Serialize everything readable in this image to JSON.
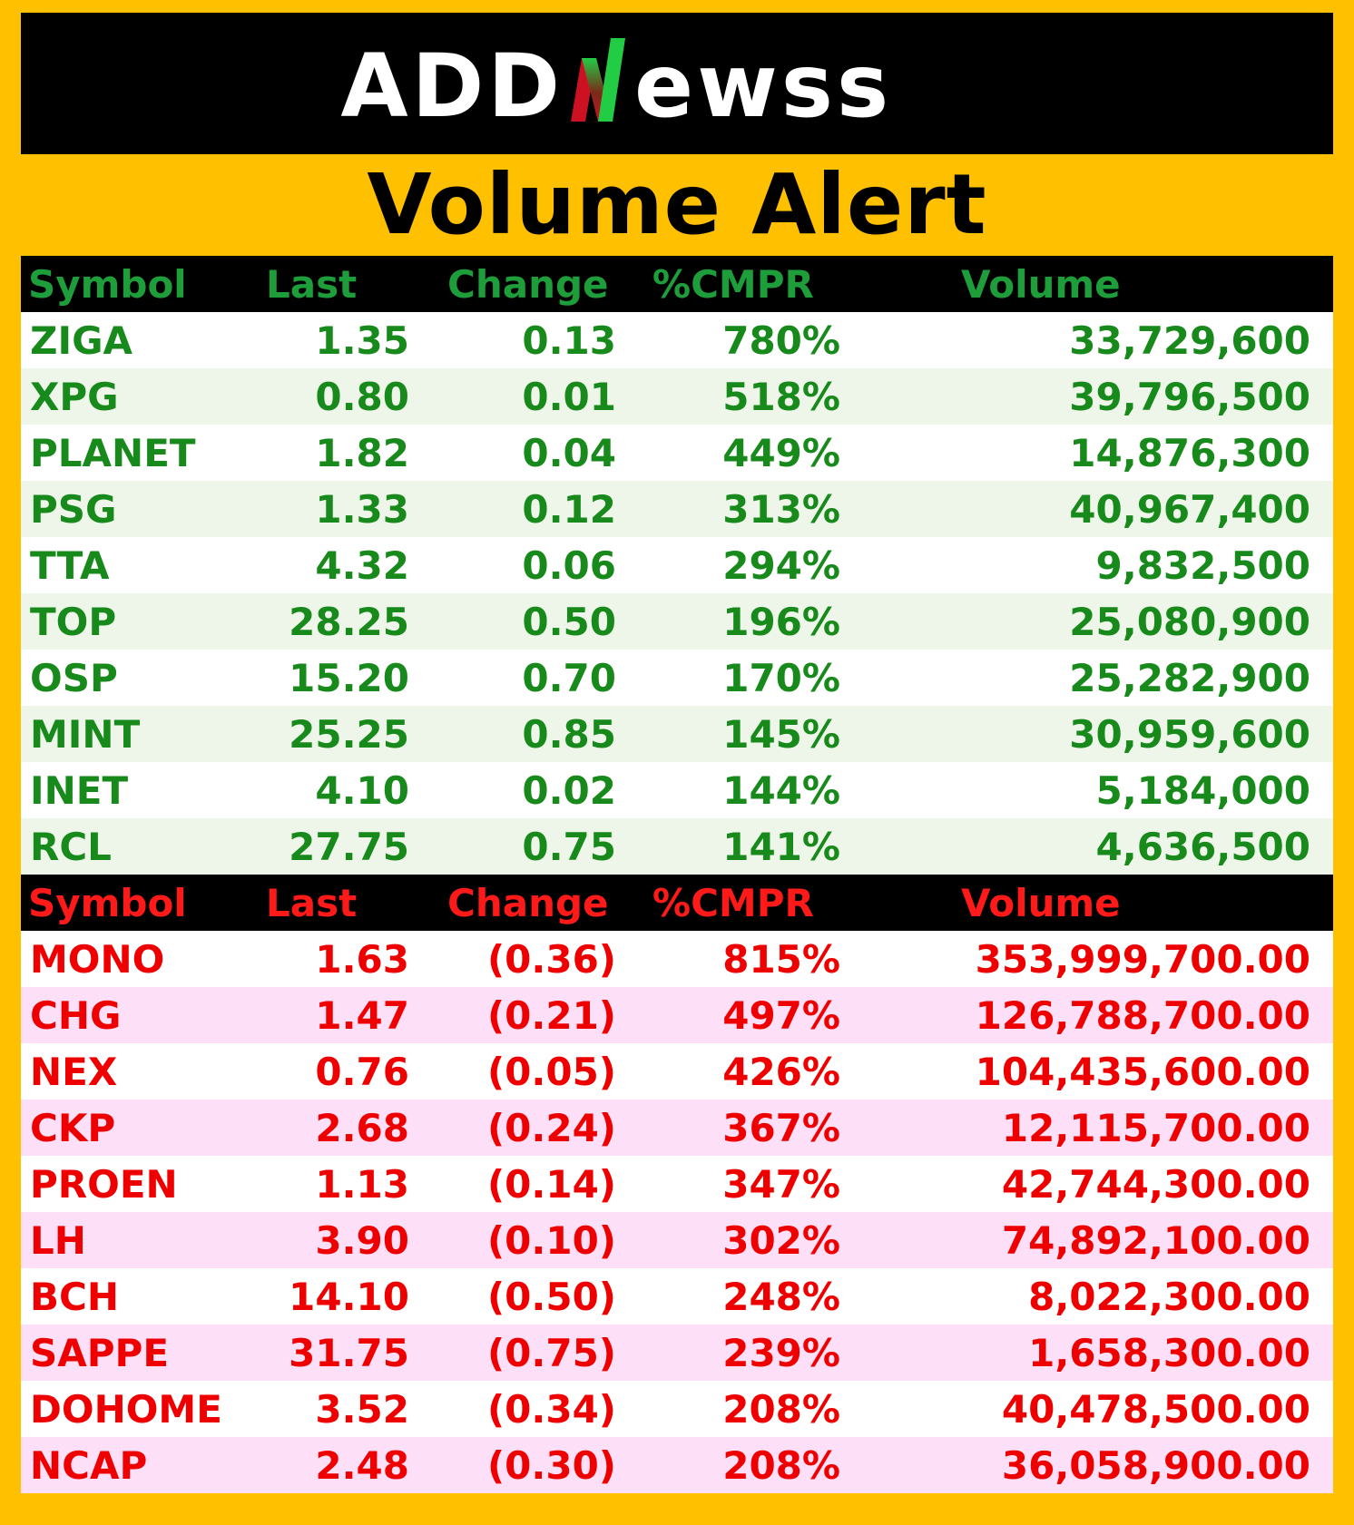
{
  "brand": {
    "logo_left": "ADD",
    "logo_right": "ewss",
    "colors": {
      "accent_green": "#22cc44",
      "accent_red": "#cc1122",
      "background": "#ffc000"
    }
  },
  "title": "Volume Alert",
  "headers": [
    "Symbol",
    "Last",
    "Change",
    "%CMPR",
    "Volume"
  ],
  "gainers": [
    {
      "symbol": "ZIGA",
      "last": "1.35",
      "change": "0.13",
      "cmpr": "780%",
      "volume": "33,729,600"
    },
    {
      "symbol": "XPG",
      "last": "0.80",
      "change": "0.01",
      "cmpr": "518%",
      "volume": "39,796,500"
    },
    {
      "symbol": "PLANET",
      "last": "1.82",
      "change": "0.04",
      "cmpr": "449%",
      "volume": "14,876,300"
    },
    {
      "symbol": "PSG",
      "last": "1.33",
      "change": "0.12",
      "cmpr": "313%",
      "volume": "40,967,400"
    },
    {
      "symbol": "TTA",
      "last": "4.32",
      "change": "0.06",
      "cmpr": "294%",
      "volume": "9,832,500"
    },
    {
      "symbol": "TOP",
      "last": "28.25",
      "change": "0.50",
      "cmpr": "196%",
      "volume": "25,080,900"
    },
    {
      "symbol": "OSP",
      "last": "15.20",
      "change": "0.70",
      "cmpr": "170%",
      "volume": "25,282,900"
    },
    {
      "symbol": "MINT",
      "last": "25.25",
      "change": "0.85",
      "cmpr": "145%",
      "volume": "30,959,600"
    },
    {
      "symbol": "INET",
      "last": "4.10",
      "change": "0.02",
      "cmpr": "144%",
      "volume": "5,184,000"
    },
    {
      "symbol": "RCL",
      "last": "27.75",
      "change": "0.75",
      "cmpr": "141%",
      "volume": "4,636,500"
    }
  ],
  "losers": [
    {
      "symbol": "MONO",
      "last": "1.63",
      "change": "(0.36)",
      "cmpr": "815%",
      "volume": "353,999,700.00"
    },
    {
      "symbol": "CHG",
      "last": "1.47",
      "change": "(0.21)",
      "cmpr": "497%",
      "volume": "126,788,700.00"
    },
    {
      "symbol": "NEX",
      "last": "0.76",
      "change": "(0.05)",
      "cmpr": "426%",
      "volume": "104,435,600.00"
    },
    {
      "symbol": "CKP",
      "last": "2.68",
      "change": "(0.24)",
      "cmpr": "367%",
      "volume": "12,115,700.00"
    },
    {
      "symbol": "PROEN",
      "last": "1.13",
      "change": "(0.14)",
      "cmpr": "347%",
      "volume": "42,744,300.00"
    },
    {
      "symbol": "LH",
      "last": "3.90",
      "change": "(0.10)",
      "cmpr": "302%",
      "volume": "74,892,100.00"
    },
    {
      "symbol": "BCH",
      "last": "14.10",
      "change": "(0.50)",
      "cmpr": "248%",
      "volume": "8,022,300.00"
    },
    {
      "symbol": "SAPPE",
      "last": "31.75",
      "change": "(0.75)",
      "cmpr": "239%",
      "volume": "1,658,300.00"
    },
    {
      "symbol": "DOHOME",
      "last": "3.52",
      "change": "(0.34)",
      "cmpr": "208%",
      "volume": "40,478,500.00"
    },
    {
      "symbol": "NCAP",
      "last": "2.48",
      "change": "(0.30)",
      "cmpr": "208%",
      "volume": "36,058,900.00"
    }
  ]
}
